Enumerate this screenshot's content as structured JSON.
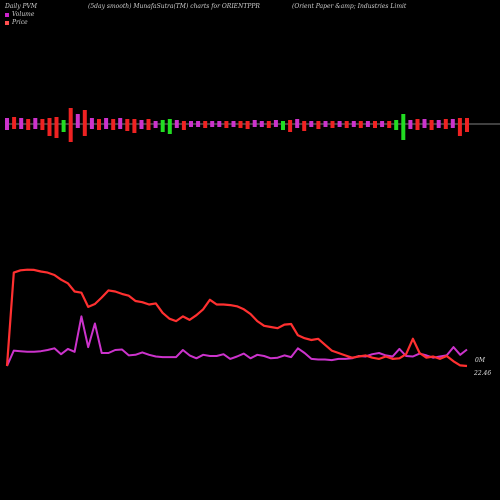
{
  "header": {
    "left": "Daily PVM",
    "middle": "(5day smooth) MunafaSutra(TM) charts for ORIENTPPR",
    "right": "(Orient Paper &amp; Industries Limit"
  },
  "legend": [
    {
      "label": "Volume",
      "color": "#cc22cc"
    },
    {
      "label": "Price",
      "color": "#ff4f4f"
    }
  ],
  "labels": {
    "volume_right": "0M",
    "price_right": "22.46"
  },
  "chart_data": {
    "type": "line",
    "title": "(5day smooth) MunafaSutra(TM) charts for ORIENTPPR",
    "price": [
      22.0,
      101.0,
      103.0,
      103.5,
      103.3,
      102.0,
      101.0,
      99.0,
      95.0,
      92.0,
      85.0,
      84.0,
      72.0,
      74.5,
      80.0,
      86.0,
      85.0,
      83.0,
      81.5,
      77.0,
      76.0,
      74.0,
      75.0,
      67.0,
      62.0,
      60.0,
      64.0,
      61.0,
      65.0,
      70.0,
      78.0,
      74.0,
      74.0,
      73.5,
      72.5,
      70.0,
      66.0,
      60.0,
      56.0,
      55.0,
      54.0,
      57.0,
      57.5,
      48.0,
      45.5,
      44.0,
      45.0,
      40.0,
      35.0,
      33.0,
      31.0,
      29.0,
      30.0,
      31.0,
      29.0,
      28.0,
      30.0,
      28.0,
      28.5,
      32.0,
      45.0,
      33.0,
      29.0,
      30.0,
      28.0,
      30.5,
      26.0,
      22.5,
      22.0
    ],
    "volume": [
      22.0,
      35.0,
      34.5,
      34.0,
      34.0,
      34.5,
      35.5,
      37.0,
      32.0,
      36.5,
      34.0,
      64.0,
      38.0,
      58.0,
      33.0,
      33.0,
      35.5,
      36.0,
      31.0,
      31.5,
      33.5,
      31.5,
      30.0,
      29.5,
      29.5,
      29.5,
      35.5,
      31.0,
      28.5,
      31.5,
      30.5,
      30.5,
      32.0,
      28.0,
      30.0,
      32.5,
      28.5,
      31.5,
      30.5,
      28.5,
      29.0,
      31.0,
      29.5,
      37.0,
      33.0,
      28.0,
      27.5,
      27.5,
      27.0,
      28.0,
      28.0,
      28.5,
      30.5,
      30.0,
      32.0,
      33.0,
      31.0,
      30.0,
      36.5,
      30.5,
      30.0,
      32.5,
      31.0,
      29.0,
      30.0,
      31.0,
      38.0,
      31.5,
      36.0
    ],
    "pvm_bars": [
      {
        "up": 6,
        "down": 6,
        "color": "magenta"
      },
      {
        "up": 7,
        "down": 5,
        "color": "red"
      },
      {
        "up": 6,
        "down": 5,
        "color": "magenta"
      },
      {
        "up": 5,
        "down": 6,
        "color": "red"
      },
      {
        "up": 6,
        "down": 5,
        "color": "magenta"
      },
      {
        "up": 5,
        "down": 6,
        "color": "red"
      },
      {
        "up": 6,
        "down": 12,
        "color": "red"
      },
      {
        "up": 7,
        "down": 14,
        "color": "red"
      },
      {
        "up": 4,
        "down": 8,
        "color": "green"
      },
      {
        "up": 16,
        "down": 18,
        "color": "red"
      },
      {
        "up": 10,
        "down": 4,
        "color": "magenta"
      },
      {
        "up": 14,
        "down": 12,
        "color": "red"
      },
      {
        "up": 6,
        "down": 5,
        "color": "magenta"
      },
      {
        "up": 5,
        "down": 6,
        "color": "red"
      },
      {
        "up": 6,
        "down": 5,
        "color": "magenta"
      },
      {
        "up": 5,
        "down": 6,
        "color": "red"
      },
      {
        "up": 6,
        "down": 5,
        "color": "magenta"
      },
      {
        "up": 5,
        "down": 7,
        "color": "red"
      },
      {
        "up": 5,
        "down": 9,
        "color": "red"
      },
      {
        "up": 4,
        "down": 5,
        "color": "magenta"
      },
      {
        "up": 5,
        "down": 6,
        "color": "red"
      },
      {
        "up": 3,
        "down": 4,
        "color": "magenta"
      },
      {
        "up": 4,
        "down": 8,
        "color": "green"
      },
      {
        "up": 5,
        "down": 10,
        "color": "green"
      },
      {
        "up": 4,
        "down": 4,
        "color": "magenta"
      },
      {
        "up": 3,
        "down": 6,
        "color": "red"
      },
      {
        "up": 3,
        "down": 3,
        "color": "magenta"
      },
      {
        "up": 3,
        "down": 3,
        "color": "magenta"
      },
      {
        "up": 3,
        "down": 4,
        "color": "red"
      },
      {
        "up": 3,
        "down": 3,
        "color": "magenta"
      },
      {
        "up": 3,
        "down": 3,
        "color": "magenta"
      },
      {
        "up": 3,
        "down": 4,
        "color": "red"
      },
      {
        "up": 3,
        "down": 3,
        "color": "magenta"
      },
      {
        "up": 3,
        "down": 4,
        "color": "red"
      },
      {
        "up": 3,
        "down": 5,
        "color": "red"
      },
      {
        "up": 4,
        "down": 3,
        "color": "magenta"
      },
      {
        "up": 3,
        "down": 3,
        "color": "magenta"
      },
      {
        "up": 3,
        "down": 4,
        "color": "red"
      },
      {
        "up": 4,
        "down": 3,
        "color": "magenta"
      },
      {
        "up": 3,
        "down": 6,
        "color": "green"
      },
      {
        "up": 4,
        "down": 8,
        "color": "red"
      },
      {
        "up": 5,
        "down": 4,
        "color": "magenta"
      },
      {
        "up": 3,
        "down": 7,
        "color": "red"
      },
      {
        "up": 3,
        "down": 3,
        "color": "magenta"
      },
      {
        "up": 3,
        "down": 5,
        "color": "red"
      },
      {
        "up": 3,
        "down": 3,
        "color": "magenta"
      },
      {
        "up": 3,
        "down": 4,
        "color": "red"
      },
      {
        "up": 3,
        "down": 3,
        "color": "magenta"
      },
      {
        "up": 3,
        "down": 4,
        "color": "red"
      },
      {
        "up": 3,
        "down": 3,
        "color": "magenta"
      },
      {
        "up": 3,
        "down": 4,
        "color": "red"
      },
      {
        "up": 3,
        "down": 3,
        "color": "magenta"
      },
      {
        "up": 3,
        "down": 4,
        "color": "red"
      },
      {
        "up": 3,
        "down": 3,
        "color": "magenta"
      },
      {
        "up": 3,
        "down": 4,
        "color": "red"
      },
      {
        "up": 4,
        "down": 6,
        "color": "green"
      },
      {
        "up": 10,
        "down": 16,
        "color": "green"
      },
      {
        "up": 4,
        "down": 5,
        "color": "magenta"
      },
      {
        "up": 5,
        "down": 6,
        "color": "red"
      },
      {
        "up": 5,
        "down": 4,
        "color": "magenta"
      },
      {
        "up": 4,
        "down": 6,
        "color": "red"
      },
      {
        "up": 4,
        "down": 4,
        "color": "magenta"
      },
      {
        "up": 5,
        "down": 5,
        "color": "red"
      },
      {
        "up": 5,
        "down": 4,
        "color": "magenta"
      },
      {
        "up": 6,
        "down": 12,
        "color": "red"
      },
      {
        "up": 6,
        "down": 8,
        "color": "red"
      }
    ],
    "colors": {
      "price": "#ff3030",
      "volume": "#cc33cc",
      "baseline": "#aaaaaa",
      "magenta": "#cc33cc",
      "red": "#ee2222",
      "green": "#22dd22"
    }
  }
}
